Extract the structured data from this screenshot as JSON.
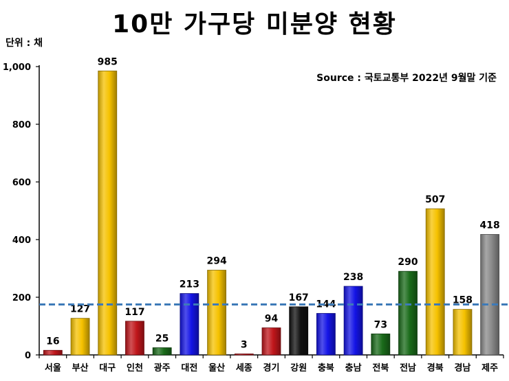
{
  "header": {
    "title": "10만 가구당 미분양 현황",
    "unit": "단위 : 채",
    "source": "Source :  국토교통부  2022년 9월말 기준"
  },
  "chart_data": {
    "type": "bar",
    "title": "10만 가구당 미분양 현황",
    "xlabel": "",
    "ylabel": "",
    "ylim": [
      0,
      1000
    ],
    "yticks": [
      0,
      200,
      400,
      600,
      800,
      1000
    ],
    "ytick_labels": [
      "0",
      "200",
      "400",
      "600",
      "800",
      "1,000"
    ],
    "categories": [
      "서울",
      "부산",
      "대구",
      "인천",
      "광주",
      "대전",
      "울산",
      "세종",
      "경기",
      "강원",
      "충북",
      "충남",
      "전북",
      "전남",
      "경북",
      "경남",
      "제주"
    ],
    "values": [
      16,
      127,
      985,
      117,
      25,
      213,
      294,
      3,
      94,
      167,
      144,
      238,
      73,
      290,
      507,
      158,
      418
    ],
    "bar_colors": [
      "#c0161b",
      "#f6c200",
      "#f6c200",
      "#c0161b",
      "#1a6b1a",
      "#1414e6",
      "#f6c200",
      "#c0161b",
      "#c0161b",
      "#111111",
      "#1414e6",
      "#1414e6",
      "#1a6b1a",
      "#1a6b1a",
      "#f6c200",
      "#f6c200",
      "#8a8a8a"
    ],
    "reference_line": {
      "value": 175,
      "style": "dashed",
      "color": "#3d7ab8"
    },
    "grid": false,
    "legend": "none"
  }
}
